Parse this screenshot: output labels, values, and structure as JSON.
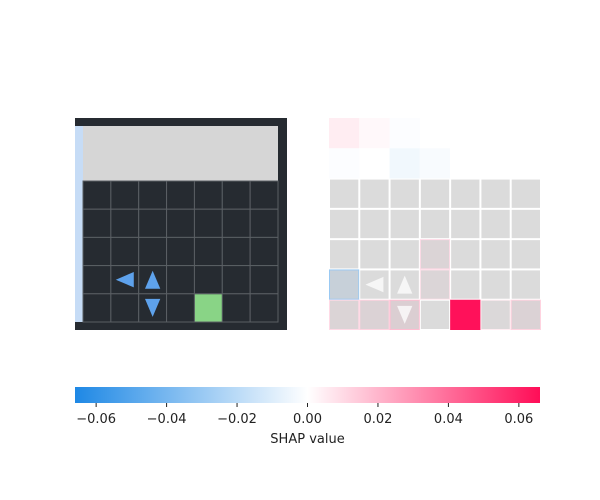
{
  "chart_data": [
    {
      "type": "heatmap",
      "panel": "observation",
      "colors": {
        "frame": "#262b31",
        "grid_line": "#5a5f64",
        "header": "#d6d6d6",
        "left_strip": "#c6dcf6",
        "goal": "#89d486",
        "agent": "#5ea2ec"
      },
      "grid": {
        "columns": 7,
        "rows": 5,
        "header_rows": 2
      },
      "goal_cell": {
        "col": 4,
        "row": 4
      },
      "agent_arrows": [
        {
          "direction": "left",
          "col": 1,
          "row": 3
        },
        {
          "direction": "up",
          "col": 2,
          "row": 3
        },
        {
          "direction": "down",
          "col": 2,
          "row": 4
        }
      ]
    },
    {
      "type": "heatmap",
      "panel": "shap",
      "columns": 7,
      "rows": 7,
      "row_heights": [
        1,
        1,
        1,
        1,
        1,
        1,
        1
      ],
      "values": [
        [
          0.005,
          0.002,
          -0.001,
          0.0,
          0.0,
          0.0,
          0.0
        ],
        [
          -0.001,
          0.0,
          -0.004,
          -0.002,
          0.0,
          0.0,
          0.0
        ],
        [
          0.0,
          0.0,
          0.0,
          0.0,
          0.0,
          0.0,
          0.0
        ],
        [
          0.0,
          0.0,
          0.0,
          0.0,
          0.0,
          0.0,
          0.0
        ],
        [
          0.0,
          0.0,
          0.0,
          0.01,
          0.0,
          0.0,
          0.0
        ],
        [
          -0.03,
          0.0,
          0.0,
          0.008,
          0.0,
          0.0,
          0.0
        ],
        [
          0.01,
          0.012,
          0.018,
          0.0,
          0.065,
          0.005,
          0.012
        ]
      ],
      "overlay": {
        "gray": "#d2d2d2",
        "opacity": 0.8
      },
      "arrows": [
        {
          "direction": "left",
          "col": 1,
          "row": 5
        },
        {
          "direction": "up",
          "col": 2,
          "row": 5
        },
        {
          "direction": "down",
          "col": 2,
          "row": 6
        }
      ]
    },
    {
      "type": "colorbar",
      "vmin": -0.066,
      "vmax": 0.066,
      "colors": {
        "negative": "#1e88e5",
        "middle": "#ffffff",
        "positive": "#ff0d57"
      },
      "ticks": [
        "−0.06",
        "−0.04",
        "−0.02",
        "0.00",
        "0.02",
        "0.04",
        "0.06"
      ],
      "tick_values": [
        -0.06,
        -0.04,
        -0.02,
        0.0,
        0.02,
        0.04,
        0.06
      ],
      "xlabel": "SHAP value"
    }
  ]
}
